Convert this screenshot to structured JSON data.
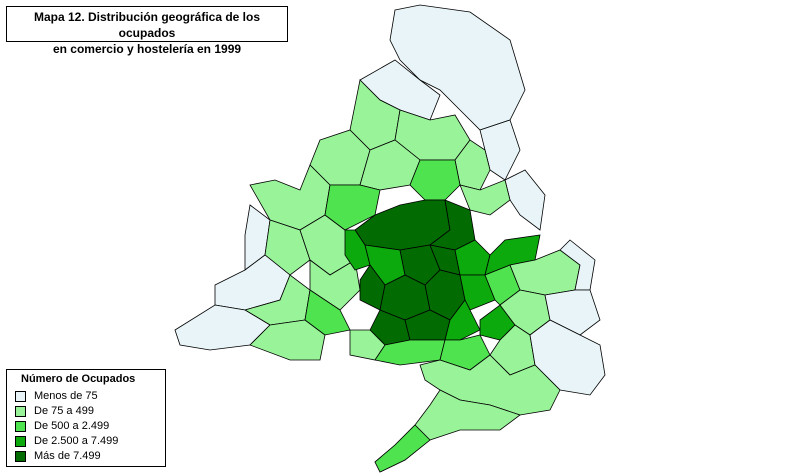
{
  "title": {
    "line1": "Mapa 12. Distribución geográfica de los ocupados",
    "line2": "en comercio y hostelería en 1999"
  },
  "legend": {
    "title": "Número de Ocupados",
    "items": [
      {
        "label": "Menos de 75",
        "color": "#E8F4F8"
      },
      {
        "label": "De 75 a 499",
        "color": "#99F399"
      },
      {
        "label": "De 500 a 2.499",
        "color": "#4FE34F"
      },
      {
        "label": "De 2.500 a 7.499",
        "color": "#0CAA0C"
      },
      {
        "label": "Más de 7.499",
        "color": "#026B02"
      }
    ]
  },
  "colors": {
    "border": "#000000",
    "background": "#FFFFFF"
  }
}
